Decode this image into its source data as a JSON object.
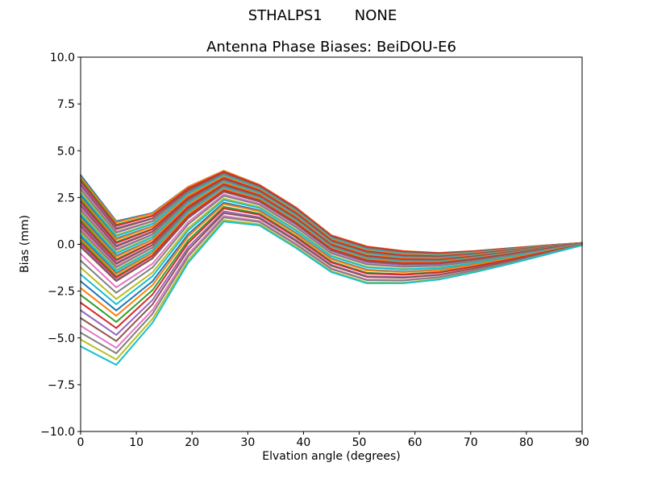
{
  "figure": {
    "suptitle": "STHALPS1       NONE",
    "axes_title": "Antenna Phase Biases: BeiDOU-E6",
    "background": "#ffffff"
  },
  "chart_data": {
    "type": "line",
    "suptitle": "STHALPS1       NONE",
    "title": "Antenna Phase Biases: BeiDOU-E6",
    "xlabel": "Elvation angle (degrees)",
    "ylabel": "Bias (mm)",
    "xlim": [
      0,
      90
    ],
    "ylim": [
      -10,
      10
    ],
    "xticks": [
      0,
      10,
      20,
      30,
      40,
      50,
      60,
      70,
      80,
      90
    ],
    "xtick_labels": [
      "0",
      "10",
      "20",
      "30",
      "40",
      "50",
      "60",
      "70",
      "80",
      "90"
    ],
    "yticks": [
      10,
      7.5,
      5,
      2.5,
      0,
      -2.5,
      -5,
      -7.5,
      -10
    ],
    "ytick_labels": [
      "10.0",
      "7.5",
      "5.0",
      "2.5",
      "0.0",
      "−2.5",
      "−5.0",
      "−7.5",
      "−10.0"
    ],
    "grid": false,
    "legend": null,
    "series_count": 50,
    "x": [
      0,
      6.4,
      12.9,
      19.3,
      25.7,
      32.1,
      38.6,
      45,
      51.4,
      57.9,
      64.3,
      70.7,
      77.1,
      83.6,
      90
    ],
    "envelope_top": [
      3.7,
      1.25,
      1.7,
      3.1,
      3.95,
      3.2,
      2.0,
      0.5,
      -0.1,
      -0.35,
      -0.45,
      -0.35,
      -0.2,
      -0.05,
      0.08
    ],
    "envelope_bottom": [
      -5.45,
      -6.45,
      -4.2,
      -1.0,
      1.2,
      1.0,
      -0.2,
      -1.5,
      -2.1,
      -2.1,
      -1.9,
      -1.5,
      -1.05,
      -0.55,
      -0.05
    ],
    "series_fractions": [
      [
        0.0,
        0.03
      ],
      [
        0.012,
        0.0
      ],
      [
        0.024,
        0.054
      ],
      [
        0.036,
        0.006
      ],
      [
        0.048,
        0.078
      ],
      [
        0.06,
        0.03
      ],
      [
        0.072,
        0.102
      ],
      [
        0.084,
        0.054
      ],
      [
        0.096,
        0.126
      ],
      [
        0.108,
        0.078
      ],
      [
        0.12,
        0.15
      ],
      [
        0.132,
        0.102
      ],
      [
        0.144,
        0.174
      ],
      [
        0.156,
        0.126
      ],
      [
        0.168,
        0.198
      ],
      [
        0.18,
        0.15
      ],
      [
        0.192,
        0.222
      ],
      [
        0.204,
        0.174
      ],
      [
        0.216,
        0.246
      ],
      [
        0.228,
        0.198
      ],
      [
        0.24,
        0.27
      ],
      [
        0.252,
        0.222
      ],
      [
        0.264,
        0.294
      ],
      [
        0.276,
        0.246
      ],
      [
        0.288,
        0.318
      ],
      [
        0.3,
        0.27
      ],
      [
        0.312,
        0.342
      ],
      [
        0.324,
        0.294
      ],
      [
        0.336,
        0.366
      ],
      [
        0.348,
        0.318
      ],
      [
        0.36,
        0.39
      ],
      [
        0.372,
        0.342
      ],
      [
        0.384,
        0.414
      ],
      [
        0.396,
        0.366
      ],
      [
        0.408,
        0.438
      ],
      [
        0.42,
        0.39
      ],
      [
        0.46,
        0.48
      ],
      [
        0.5,
        0.48
      ],
      [
        0.54,
        0.56
      ],
      [
        0.58,
        0.56
      ],
      [
        0.62,
        0.64
      ],
      [
        0.66,
        0.64
      ],
      [
        0.7,
        0.72
      ],
      [
        0.745,
        0.725
      ],
      [
        0.79,
        0.81
      ],
      [
        0.835,
        0.815
      ],
      [
        0.88,
        0.9
      ],
      [
        0.92,
        0.9
      ],
      [
        0.96,
        0.98
      ],
      [
        1.0,
        0.985
      ]
    ],
    "palette": [
      "#1f77b4",
      "#ff7f0e",
      "#2ca02c",
      "#d62728",
      "#9467bd",
      "#8c564b",
      "#e377c2",
      "#7f7f7f",
      "#bcbd22",
      "#17becf"
    ],
    "line_width": 2,
    "axis_color": "#000000",
    "note": "50 unlabeled bias curves; each curve = envelope_top + fraction * (envelope_bottom - envelope_top), fraction blending linearly from first to second value across 0-90 degrees."
  }
}
